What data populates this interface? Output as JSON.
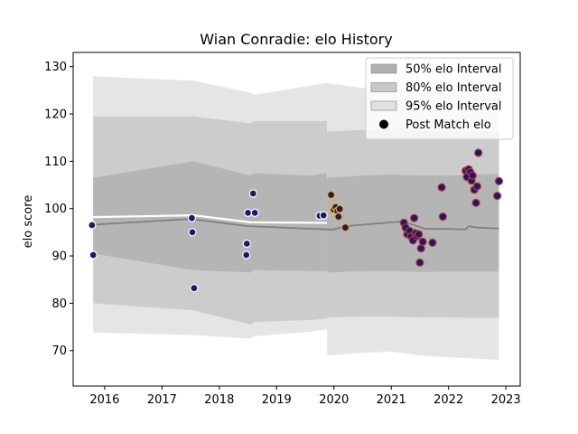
{
  "chart_data": {
    "type": "scatter",
    "title": "Wian Conradie: elo History",
    "xlabel": "",
    "ylabel": "elo score",
    "xlim": [
      2015.45,
      2023.25
    ],
    "ylim": [
      62.5,
      133
    ],
    "x_ticks": [
      2016,
      2017,
      2018,
      2019,
      2020,
      2021,
      2022,
      2023
    ],
    "x_tick_labels": [
      "2016",
      "2017",
      "2018",
      "2019",
      "2020",
      "2021",
      "2022",
      "2023"
    ],
    "y_ticks": [
      70,
      80,
      90,
      100,
      110,
      120,
      130
    ],
    "y_tick_labels": [
      "70",
      "80",
      "90",
      "100",
      "110",
      "120",
      "130"
    ],
    "legend_position": "top-right",
    "legend": [
      {
        "label": "50% elo Interval",
        "kind": "patch",
        "color": "#b0b0b0"
      },
      {
        "label": "80% elo Interval",
        "kind": "patch",
        "color": "#c8c8c8"
      },
      {
        "label": "95% elo Interval",
        "kind": "patch",
        "color": "#e0e0e0"
      },
      {
        "label": "Post Match elo",
        "kind": "marker",
        "color": "#000000"
      }
    ],
    "colors": {
      "band50": "#b0b0b0",
      "band80": "#c8c8c8",
      "band95": "#e0e0e0",
      "point_fill": "#1a1a6e",
      "edge_early": "#ffffff",
      "edge_2020": "#f2b200",
      "edge_late": "#c0392b",
      "line_early": "#ffffff",
      "line_late": "#808080"
    },
    "bands_early": {
      "x": [
        2015.8,
        2017.55,
        2018.55,
        2018.6,
        2019.6,
        2019.88
      ],
      "q025": [
        73.8,
        73.3,
        72.5,
        73.0,
        74.0,
        74.5
      ],
      "q10": [
        80.0,
        78.5,
        75.5,
        76.0,
        76.5,
        76.8
      ],
      "q25": [
        90.5,
        87.0,
        86.5,
        87.0,
        86.8,
        86.8
      ],
      "q75": [
        106.5,
        110.0,
        107.0,
        107.5,
        107.0,
        107.5
      ],
      "q90": [
        119.5,
        119.5,
        118.0,
        118.5,
        118.5,
        118.5
      ],
      "q975": [
        128.0,
        127.0,
        124.5,
        124.0,
        126.0,
        126.5
      ]
    },
    "bands_late": {
      "x": [
        2019.88,
        2020.5,
        2021.0,
        2021.5,
        2022.0,
        2022.5,
        2022.88
      ],
      "q025": [
        69.0,
        69.5,
        69.8,
        69.0,
        68.6,
        68.3,
        68.0
      ],
      "q10": [
        77.0,
        77.2,
        77.2,
        77.0,
        77.0,
        76.9,
        76.9
      ],
      "q25": [
        86.5,
        86.8,
        86.8,
        86.6,
        86.7,
        86.7,
        86.7
      ],
      "q75": [
        106.5,
        107.0,
        107.2,
        107.0,
        107.0,
        107.2,
        107.3
      ],
      "q90": [
        116.3,
        116.6,
        116.8,
        116.5,
        116.3,
        116.3,
        116.3
      ],
      "q975": [
        126.5,
        125.5,
        125.3,
        124.8,
        124.3,
        124.0,
        123.5
      ]
    },
    "series": [
      {
        "name": "Post Match elo",
        "segments": [
          {
            "era": "early",
            "x": [
              2015.78,
              2015.8,
              2017.52,
              2017.53,
              2017.56,
              2018.47,
              2018.48,
              2018.5,
              2018.59,
              2018.62,
              2019.75,
              2019.82
            ],
            "y": [
              96.5,
              90.2,
              98.0,
              95.0,
              83.2,
              90.2,
              92.6,
              99.1,
              103.2,
              99.1,
              98.5,
              98.6
            ]
          },
          {
            "era": "2020",
            "x": [
              2019.95,
              2020.0,
              2020.03,
              2020.06,
              2020.08,
              2020.1,
              2020.2
            ],
            "y": [
              102.9,
              99.8,
              100.3,
              99.5,
              98.3,
              99.9,
              96.0
            ]
          },
          {
            "era": "late",
            "x": [
              2021.22,
              2021.25,
              2021.28,
              2021.32,
              2021.35,
              2021.38,
              2021.4,
              2021.42,
              2021.45,
              2021.48,
              2021.5,
              2021.52,
              2021.55,
              2021.72,
              2021.88,
              2021.9,
              2022.3,
              2022.32,
              2022.35,
              2022.38,
              2022.4,
              2022.42,
              2022.45,
              2022.48,
              2022.5,
              2022.52,
              2022.85,
              2022.88
            ],
            "y": [
              97.0,
              96.0,
              94.6,
              95.3,
              94.1,
              93.3,
              98.0,
              94.8,
              94.2,
              94.6,
              88.6,
              91.6,
              93.0,
              92.8,
              104.5,
              98.3,
              108.0,
              106.7,
              108.3,
              107.7,
              105.9,
              107.0,
              104.0,
              101.2,
              104.7,
              111.8,
              102.7,
              105.8
            ]
          }
        ]
      }
    ],
    "median_lines": [
      {
        "era": "early",
        "x": [
          2015.8,
          2017.55,
          2018.55,
          2019.6,
          2019.88
        ],
        "y": [
          98.2,
          98.6,
          97.1,
          97.0,
          97.0
        ]
      },
      {
        "era": "late",
        "x": [
          2015.8,
          2017.5,
          2018.5,
          2019.9,
          2020.0,
          2020.2,
          2021.2,
          2021.4,
          2021.6,
          2022.0,
          2022.3,
          2022.35,
          2022.5,
          2022.88
        ],
        "y": [
          96.6,
          97.8,
          96.3,
          95.6,
          95.6,
          96.3,
          97.3,
          96.5,
          95.7,
          95.7,
          95.6,
          96.3,
          96.0,
          95.8
        ]
      }
    ]
  }
}
